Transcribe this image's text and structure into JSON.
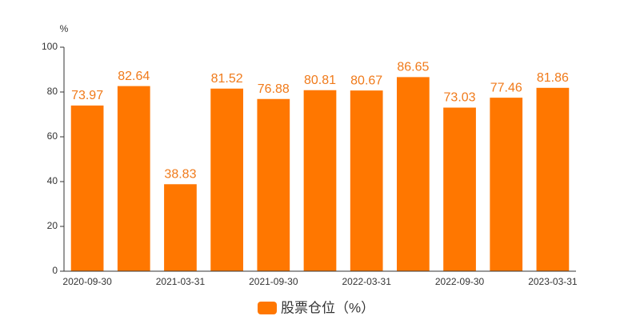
{
  "chart_data": {
    "type": "bar",
    "y_axis_label": "%",
    "categories": [
      "2020-09-30",
      null,
      "2021-03-31",
      null,
      "2021-09-30",
      null,
      "2022-03-31",
      null,
      "2022-09-30",
      null,
      "2023-03-31"
    ],
    "series": [
      {
        "name": "股票仓位（%）",
        "color": "#ff7700",
        "values": [
          73.97,
          82.64,
          38.83,
          81.52,
          76.88,
          80.81,
          80.67,
          86.65,
          73.03,
          77.46,
          81.86
        ]
      }
    ],
    "ylim": [
      0,
      100
    ],
    "yticks": [
      0,
      20,
      40,
      60,
      80,
      100
    ]
  }
}
